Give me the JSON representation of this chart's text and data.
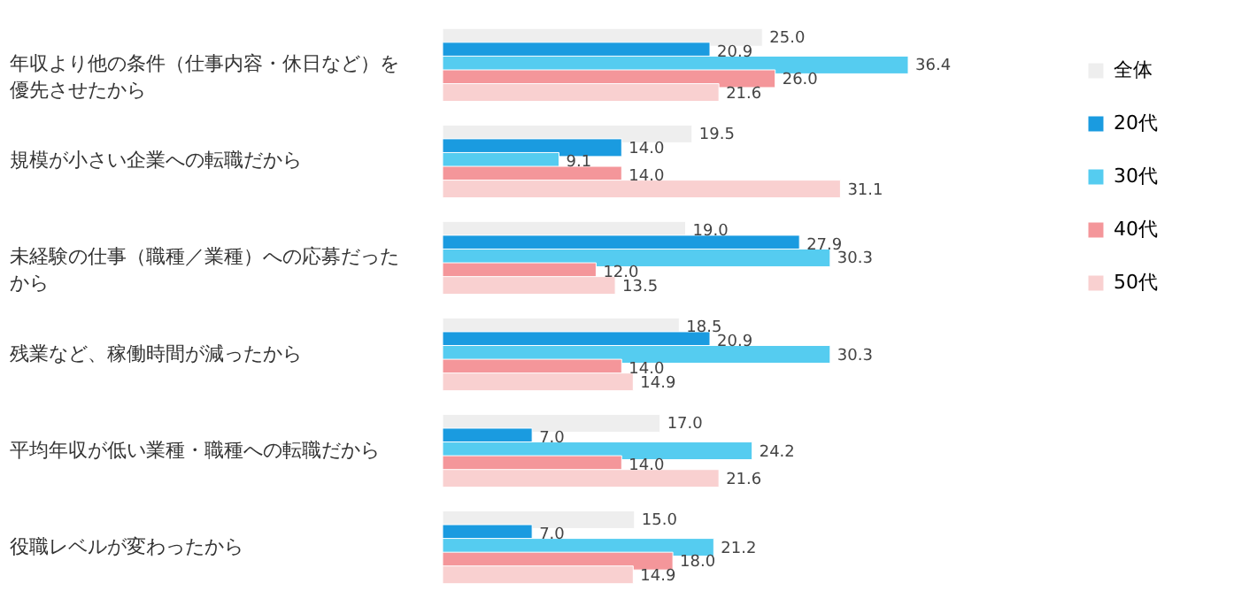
{
  "chart_data": {
    "type": "bar",
    "orientation": "horizontal",
    "categories": [
      "年収より他の条件（仕事内容・休日など）を優先させたから",
      "規模が小さい企業への転職だから",
      "未経験の仕事（職種／業種）への応募だったから",
      "残業など、稼働時間が減ったから",
      "平均年収が低い業種・職種への転職だから",
      "役職レベルが変わったから"
    ],
    "series": [
      {
        "name": "全体",
        "color": "#eeeeee",
        "values": [
          25.0,
          19.5,
          19.0,
          18.5,
          17.0,
          15.0
        ],
        "value_labels": [
          "25.0",
          "19.5",
          "19.0",
          "18.5",
          "17.0",
          "15.0"
        ]
      },
      {
        "name": "20代",
        "color": "#1a9be0",
        "values": [
          20.9,
          14.0,
          27.9,
          20.9,
          7.0,
          7.0
        ],
        "value_labels": [
          "20.9",
          "14.0",
          "27.9",
          "20.9",
          "7.0",
          "7.0"
        ]
      },
      {
        "name": "30代",
        "color": "#55ccf0",
        "values": [
          36.4,
          9.1,
          30.3,
          30.3,
          24.2,
          21.2
        ],
        "value_labels": [
          "36.4",
          "9.1",
          "30.3",
          "30.3",
          "24.2",
          "21.2"
        ]
      },
      {
        "name": "40代",
        "color": "#f4969a",
        "values": [
          26.0,
          14.0,
          12.0,
          14.0,
          14.0,
          18.0
        ],
        "value_labels": [
          "26.0",
          "14.0",
          "12.0",
          "14.0",
          "14.0",
          "18.0"
        ]
      },
      {
        "name": "50代",
        "color": "#f9d0d0",
        "values": [
          21.6,
          31.1,
          13.5,
          14.9,
          21.6,
          14.9
        ],
        "value_labels": [
          "21.6",
          "31.1",
          "13.5",
          "14.9",
          "21.6",
          "14.9"
        ]
      }
    ],
    "tick_labels": "y",
    "legend": "right"
  }
}
